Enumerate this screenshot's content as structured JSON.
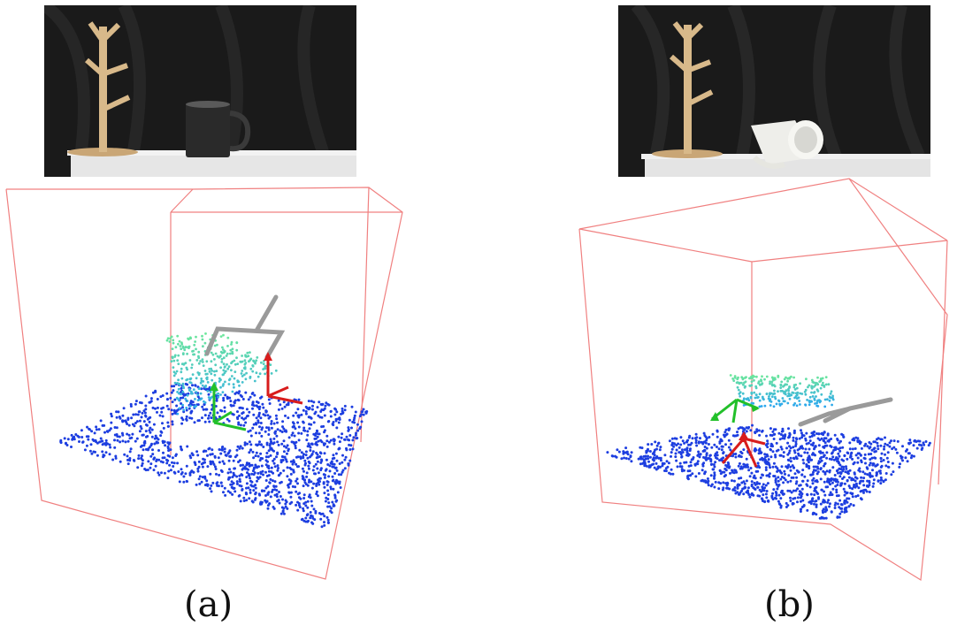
{
  "panels": [
    {
      "id": "a",
      "caption": "(a)",
      "object": "mug-upright",
      "mug_color": "#2a2a2a"
    },
    {
      "id": "b",
      "caption": "(b)",
      "object": "mug-on-side",
      "mug_color": "#eeeeea"
    }
  ],
  "colors": {
    "bounding_box": "#f08080",
    "table_points": "#1d3ee0",
    "object_points_low": "#2aa6f0",
    "object_points_high": "#6ee89a",
    "gripper": "#9a9a9a",
    "frame_x": "#d81c1c",
    "frame_y": "#22c02a",
    "backdrop": "#1b1b1b",
    "mug_tree": "#d8b98a",
    "tablecloth": "#e9e9e9"
  }
}
